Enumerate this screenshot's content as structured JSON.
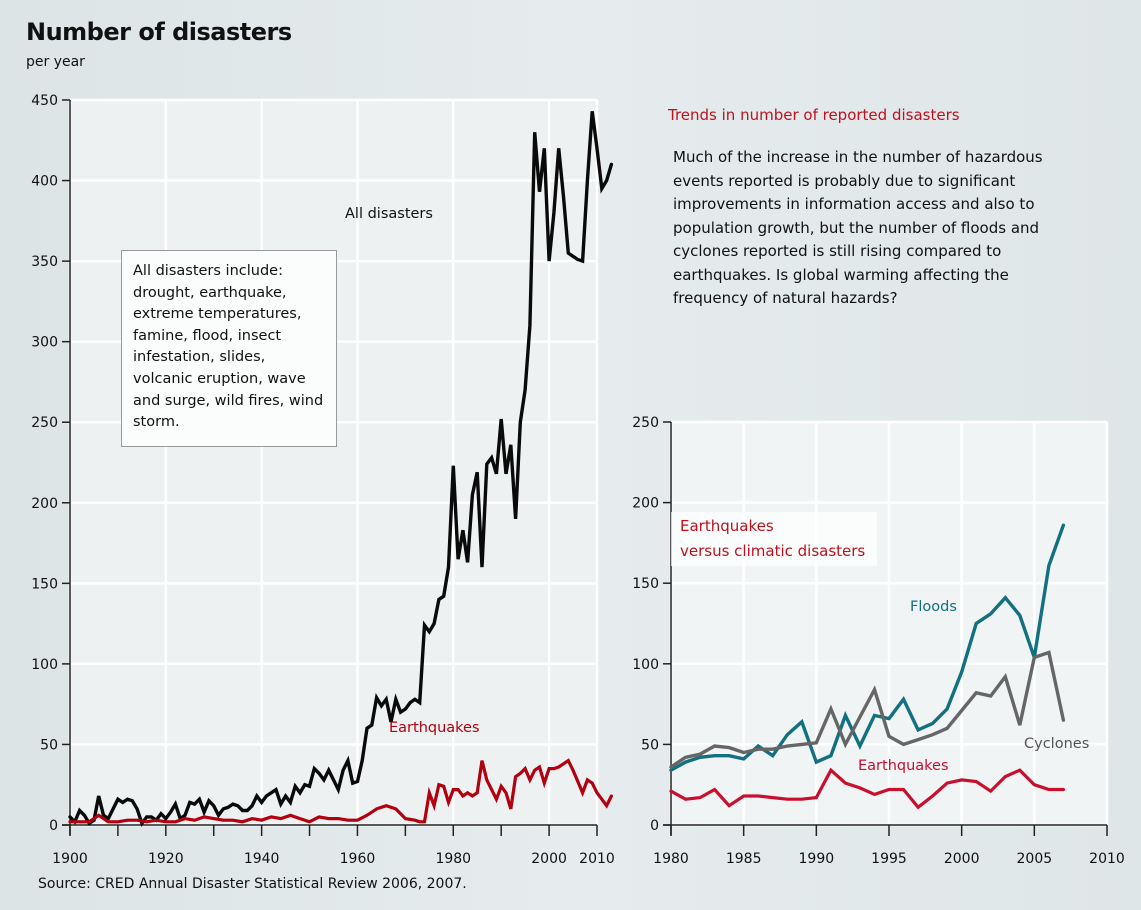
{
  "header": {
    "title": "Number of disasters",
    "subtitle": "per year"
  },
  "source": "Source: CRED Annual Disaster Statistical Review 2006, 2007.",
  "trend_panel": {
    "title": "Trends in number of reported disasters",
    "text": "Much of the increase in the number of hazardous events reported is probably due to significant improvements in information access and also to population growth, but the number of floods and cyclones reported is still rising compared to earthquakes. Is global warming affecting the frequency of natural hazards?"
  },
  "colors": {
    "all_disasters": "#0a0a0a",
    "earthquakes_left": "#b3000f",
    "earthquakes_right": "#c8102e",
    "floods": "#127080",
    "cyclones": "#666666",
    "accent_text": "#c0101c"
  },
  "chart_data": [
    {
      "type": "line",
      "title": "Number of disasters",
      "subtitle": "per year",
      "xlabel": "",
      "ylabel": "",
      "xlim": [
        1900,
        2010
      ],
      "ylim": [
        0,
        450
      ],
      "x_ticks": [
        "1900",
        "1920",
        "1940",
        "1960",
        "1980",
        "2000",
        "2010"
      ],
      "y_ticks": [
        "0",
        "50",
        "100",
        "150",
        "200",
        "250",
        "300",
        "350",
        "400",
        "450"
      ],
      "grid": true,
      "annotation_box": "All disasters include: drought, earthquake, extreme temperatures, famine, flood, insect infestation, slides, volcanic eruption, wave and surge, wild fires, wind storm.",
      "series": [
        {
          "name": "All disasters",
          "label": "All disasters",
          "x": [
            1900,
            1901,
            1902,
            1903,
            1904,
            1905,
            1906,
            1907,
            1908,
            1909,
            1910,
            1911,
            1912,
            1913,
            1914,
            1915,
            1916,
            1917,
            1918,
            1919,
            1920,
            1921,
            1922,
            1923,
            1924,
            1925,
            1926,
            1927,
            1928,
            1929,
            1930,
            1931,
            1932,
            1933,
            1934,
            1935,
            1936,
            1937,
            1938,
            1939,
            1940,
            1941,
            1942,
            1943,
            1944,
            1945,
            1946,
            1947,
            1948,
            1949,
            1950,
            1951,
            1952,
            1953,
            1954,
            1955,
            1956,
            1957,
            1958,
            1959,
            1960,
            1961,
            1962,
            1963,
            1964,
            1965,
            1966,
            1967,
            1968,
            1969,
            1970,
            1971,
            1972,
            1973,
            1974,
            1975,
            1976,
            1977,
            1978,
            1979,
            1980,
            1981,
            1982,
            1983,
            1984,
            1985,
            1986,
            1987,
            1988,
            1989,
            1990,
            1991,
            1992,
            1993,
            1994,
            1995,
            1996,
            1997,
            1998,
            1999,
            2000,
            2001,
            2002,
            2003,
            2004,
            2005,
            2006,
            2007,
            2008,
            2009,
            2010,
            2011,
            2012,
            2013
          ],
          "values": [
            5,
            2,
            9,
            6,
            1,
            3,
            18,
            6,
            4,
            10,
            16,
            14,
            16,
            15,
            10,
            1,
            5,
            5,
            3,
            7,
            4,
            8,
            13,
            4,
            6,
            14,
            13,
            16,
            8,
            15,
            12,
            6,
            10,
            11,
            13,
            12,
            9,
            9,
            12,
            18,
            14,
            18,
            20,
            22,
            13,
            18,
            14,
            24,
            20,
            25,
            24,
            35,
            32,
            28,
            34,
            28,
            22,
            34,
            40,
            26,
            27,
            40,
            60,
            62,
            79,
            74,
            78,
            64,
            78,
            70,
            72,
            76,
            78,
            76,
            124,
            120,
            125,
            140,
            142,
            160,
            223,
            165,
            183,
            163,
            205,
            219,
            160,
            224,
            228,
            218,
            252,
            218,
            236,
            190,
            250,
            270,
            310,
            430,
            393,
            420,
            350,
            380,
            420,
            390,
            355,
            353,
            351,
            350,
            400,
            443,
            420,
            395,
            400,
            410
          ]
        },
        {
          "name": "Earthquakes",
          "label": "Earthquakes",
          "x": [
            1900,
            1902,
            1904,
            1906,
            1908,
            1910,
            1912,
            1914,
            1916,
            1918,
            1920,
            1922,
            1924,
            1926,
            1928,
            1930,
            1932,
            1934,
            1936,
            1938,
            1940,
            1942,
            1944,
            1946,
            1948,
            1950,
            1952,
            1954,
            1956,
            1958,
            1960,
            1962,
            1964,
            1966,
            1968,
            1970,
            1972,
            1973,
            1974,
            1975,
            1976,
            1977,
            1978,
            1979,
            1980,
            1981,
            1982,
            1983,
            1984,
            1985,
            1986,
            1987,
            1988,
            1989,
            1990,
            1991,
            1992,
            1993,
            1994,
            1995,
            1996,
            1997,
            1998,
            1999,
            2000,
            2001,
            2002,
            2003,
            2004,
            2005,
            2006,
            2007,
            2008,
            2009,
            2010,
            2011,
            2012,
            2013
          ],
          "values": [
            2,
            2,
            2,
            6,
            2,
            2,
            3,
            3,
            2,
            3,
            2,
            2,
            4,
            3,
            5,
            4,
            3,
            3,
            2,
            4,
            3,
            5,
            4,
            6,
            4,
            2,
            5,
            4,
            4,
            3,
            3,
            6,
            10,
            12,
            10,
            4,
            3,
            2,
            2,
            20,
            12,
            25,
            24,
            14,
            22,
            22,
            18,
            20,
            18,
            20,
            40,
            28,
            22,
            16,
            24,
            20,
            10,
            30,
            32,
            35,
            28,
            34,
            36,
            26,
            35,
            35,
            36,
            38,
            40,
            34,
            27,
            20,
            28,
            26,
            20,
            16,
            12,
            18
          ]
        }
      ]
    },
    {
      "type": "line",
      "title": "Earthquakes versus climatic disasters",
      "xlabel": "",
      "ylabel": "",
      "xlim": [
        1980,
        2010
      ],
      "ylim": [
        0,
        250
      ],
      "x_ticks": [
        "1980",
        "1985",
        "1990",
        "1995",
        "2000",
        "2005",
        "2010"
      ],
      "y_ticks": [
        "0",
        "50",
        "100",
        "150",
        "200",
        "250"
      ],
      "grid": true,
      "series": [
        {
          "name": "Floods",
          "label": "Floods",
          "x": [
            1980,
            1981,
            1982,
            1983,
            1984,
            1985,
            1986,
            1987,
            1988,
            1989,
            1990,
            1991,
            1992,
            1993,
            1994,
            1995,
            1996,
            1997,
            1998,
            1999,
            2000,
            2001,
            2002,
            2003,
            2004,
            2005,
            2006,
            2007
          ],
          "values": [
            34,
            39,
            42,
            43,
            43,
            41,
            49,
            43,
            56,
            64,
            39,
            43,
            68,
            49,
            68,
            66,
            78,
            59,
            63,
            72,
            95,
            125,
            131,
            141,
            130,
            104,
            161,
            186
          ]
        },
        {
          "name": "Cyclones",
          "label": "Cyclones",
          "x": [
            1980,
            1981,
            1982,
            1983,
            1984,
            1985,
            1986,
            1987,
            1988,
            1989,
            1990,
            1991,
            1992,
            1993,
            1994,
            1995,
            1996,
            1997,
            1998,
            1999,
            2000,
            2001,
            2002,
            2003,
            2004,
            2005,
            2006,
            2007
          ],
          "values": [
            36,
            42,
            44,
            49,
            48,
            45,
            47,
            47,
            49,
            50,
            51,
            72,
            50,
            67,
            84,
            55,
            50,
            53,
            56,
            60,
            71,
            82,
            80,
            92,
            62,
            104,
            107,
            65
          ]
        },
        {
          "name": "Earthquakes",
          "label": "Earthquakes",
          "x": [
            1980,
            1981,
            1982,
            1983,
            1984,
            1985,
            1986,
            1987,
            1988,
            1989,
            1990,
            1991,
            1992,
            1993,
            1994,
            1995,
            1996,
            1997,
            1998,
            1999,
            2000,
            2001,
            2002,
            2003,
            2004,
            2005,
            2006,
            2007
          ],
          "values": [
            21,
            16,
            17,
            22,
            12,
            18,
            18,
            17,
            16,
            16,
            17,
            34,
            26,
            23,
            19,
            22,
            22,
            11,
            18,
            26,
            28,
            27,
            21,
            30,
            34,
            25,
            22,
            22
          ]
        }
      ]
    }
  ]
}
